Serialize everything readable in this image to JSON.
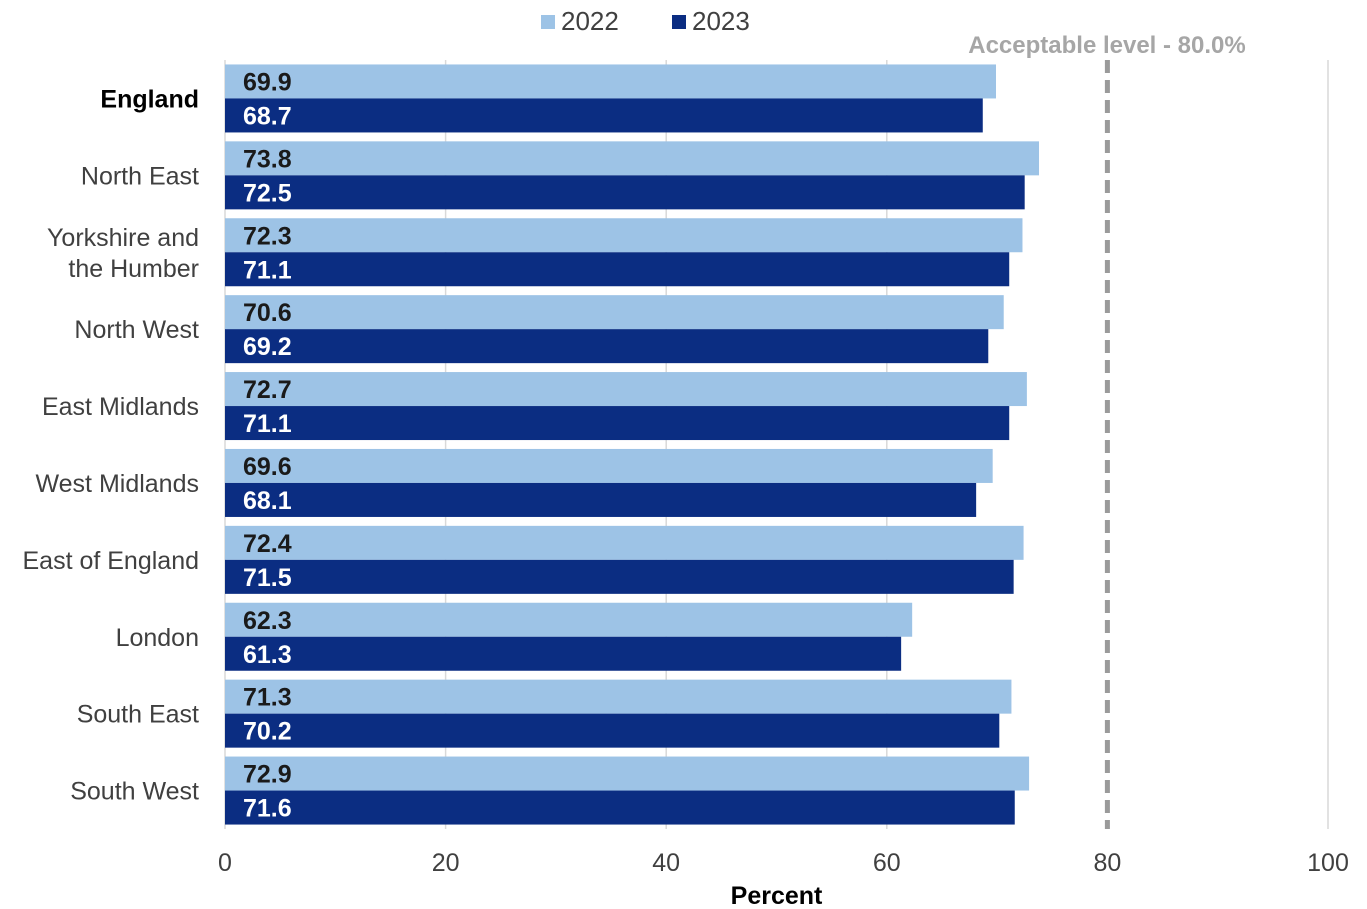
{
  "chart_data": {
    "type": "bar",
    "orientation": "horizontal",
    "categories": [
      "England",
      "North East",
      "Yorkshire and the Humber",
      "North West",
      "East Midlands",
      "West Midlands",
      "East of England",
      "London",
      "South East",
      "South West"
    ],
    "category_lines": [
      [
        "England"
      ],
      [
        "North East"
      ],
      [
        "Yorkshire and",
        "the Humber"
      ],
      [
        "North West"
      ],
      [
        "East Midlands"
      ],
      [
        "West Midlands"
      ],
      [
        "East of England"
      ],
      [
        "London"
      ],
      [
        "South East"
      ],
      [
        "South West"
      ]
    ],
    "series": [
      {
        "name": "2022",
        "color": "#9DC3E6",
        "label_color": "#1a1a1a",
        "values": [
          69.9,
          73.8,
          72.3,
          70.6,
          72.7,
          69.6,
          72.4,
          62.3,
          71.3,
          72.9
        ]
      },
      {
        "name": "2023",
        "color": "#0B2D82",
        "label_color": "#ffffff",
        "values": [
          68.7,
          72.5,
          71.1,
          69.2,
          71.1,
          68.1,
          71.5,
          61.3,
          70.2,
          71.6
        ]
      }
    ],
    "value_labels": {
      "2022": [
        "69.9",
        "73.8",
        "72.3",
        "70.6",
        "72.7",
        "69.6",
        "72.4",
        "62.3",
        "71.3",
        "72.9"
      ],
      "2023": [
        "68.7",
        "72.5",
        "71.1",
        "69.2",
        "71.1",
        "68.1",
        "71.5",
        "61.3",
        "70.2",
        "71.6"
      ]
    },
    "xlabel": "Percent",
    "ylabel": "",
    "xlim": [
      0,
      100
    ],
    "xticks": [
      "0",
      "20",
      "40",
      "60",
      "80",
      "100"
    ],
    "reference_line": {
      "value": 80,
      "label": "Acceptable level - 80.0%",
      "color": "#A6A6A6",
      "style": "dashed"
    },
    "highlight_category": "England",
    "grid": true,
    "gridline_color": "#D9D9D9",
    "legend_position": "top"
  }
}
